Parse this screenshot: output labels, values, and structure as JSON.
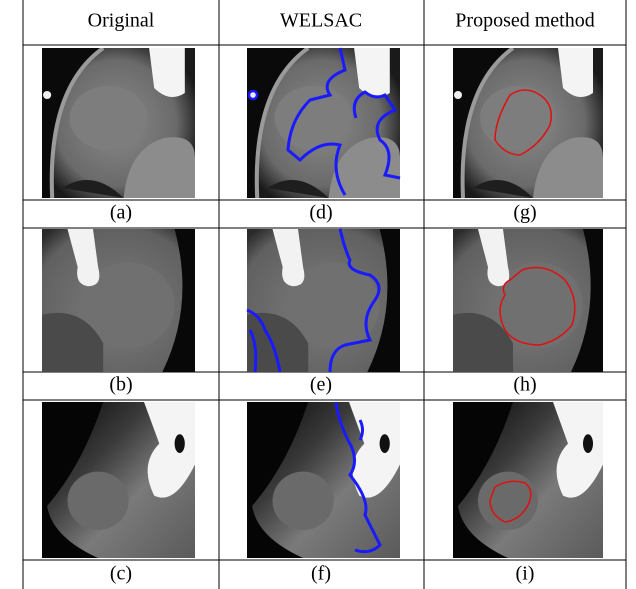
{
  "table": {
    "header": [
      "Original",
      "WELSAC",
      "Proposed method"
    ],
    "captions": [
      [
        "(a)",
        "(d)",
        "(g)"
      ],
      [
        "(b)",
        "(e)",
        "(h)"
      ],
      [
        "(c)",
        "(f)",
        "(i)"
      ]
    ]
  }
}
